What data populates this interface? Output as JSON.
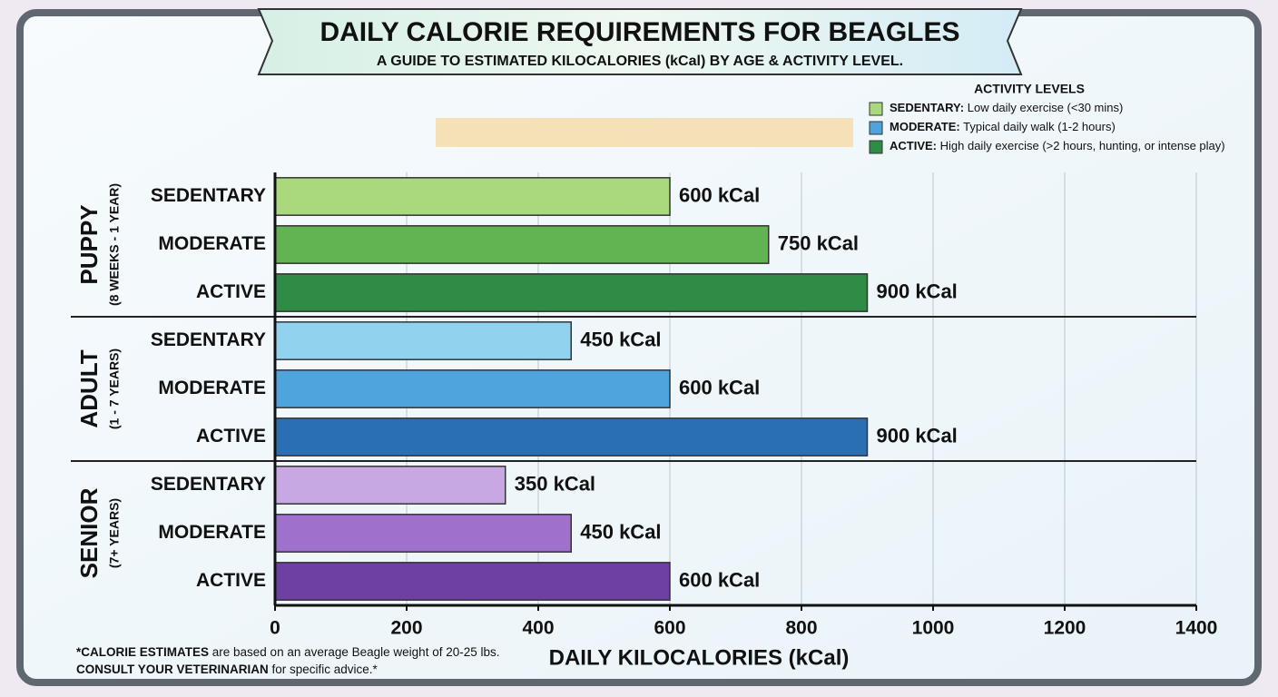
{
  "chart_data": {
    "type": "bar",
    "orientation": "horizontal",
    "title": "DAILY CALORIE REQUIREMENTS FOR BEAGLES",
    "subtitle": "A GUIDE TO ESTIMATED KILOCALORIES (kCal) BY AGE & ACTIVITY LEVEL.",
    "xlabel": "DAILY KILOCALORIES (kCal)",
    "xlim": [
      0,
      1400
    ],
    "xticks": [
      0,
      200,
      400,
      600,
      800,
      1000,
      1200,
      1400
    ],
    "grid": true,
    "groups": [
      {
        "name": "PUPPY",
        "sublabel": "(8 WEEKS - 1 YEAR)",
        "categories": [
          "SEDENTARY",
          "MODERATE",
          "ACTIVE"
        ],
        "values": [
          600,
          750,
          900
        ],
        "value_labels": [
          "600 kCal",
          "750 kCal",
          "900 kCal"
        ],
        "colors": [
          "#a9d97c",
          "#62b453",
          "#2f8c47"
        ]
      },
      {
        "name": "ADULT",
        "sublabel": "(1 - 7 YEARS)",
        "categories": [
          "SEDENTARY",
          "MODERATE",
          "ACTIVE"
        ],
        "values": [
          450,
          600,
          900
        ],
        "value_labels": [
          "450 kCal",
          "600 kCal",
          "900 kCal"
        ],
        "colors": [
          "#91d2ee",
          "#4fa4de",
          "#2a6fb4"
        ]
      },
      {
        "name": "SENIOR",
        "sublabel": "(7+ YEARS)",
        "categories": [
          "SEDENTARY",
          "MODERATE",
          "ACTIVE"
        ],
        "values": [
          350,
          450,
          600
        ],
        "value_labels": [
          "350 kCal",
          "450 kCal",
          "600 kCal"
        ],
        "colors": [
          "#c8a8e2",
          "#a070cd",
          "#6f40a4"
        ]
      }
    ],
    "legend": {
      "title": "ACTIVITY LEVELS",
      "position": "upper right",
      "entries": [
        {
          "label": "SEDENTARY:",
          "description": "Low daily exercise (<30 mins)",
          "color": "#a9d97c"
        },
        {
          "label": "MODERATE:",
          "description": "Typical daily walk (1-2 hours)",
          "color": "#4fa4de"
        },
        {
          "label": "ACTIVE:",
          "description": "High daily exercise (>2 hours, hunting, or intense play)",
          "color": "#2f8c47"
        }
      ]
    },
    "footnote": [
      [
        {
          "text": "*CALORIE ESTIMATES",
          "bold": true
        },
        {
          "text": " are based on an average Beagle weight of 20-25 lbs.",
          "bold": false
        }
      ],
      [
        {
          "text": "CONSULT YOUR VETERINARIAN",
          "bold": true
        },
        {
          "text": " for specific advice.*",
          "bold": false
        }
      ]
    ]
  }
}
